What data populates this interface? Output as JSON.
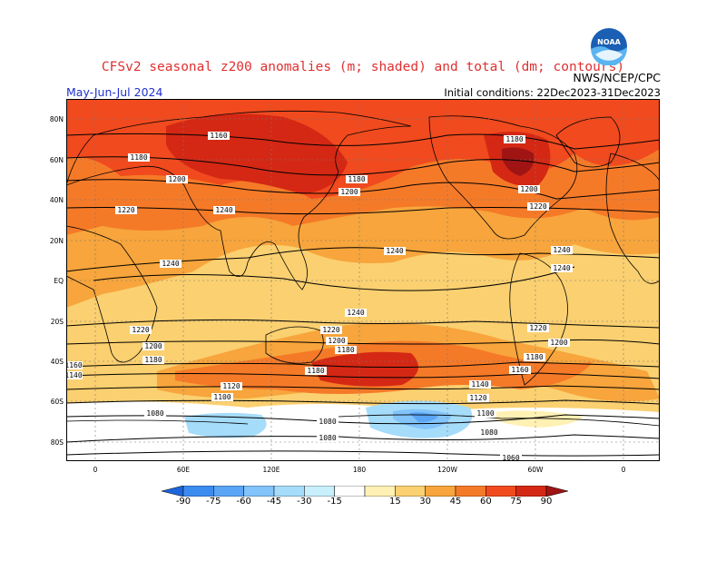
{
  "header": {
    "title": "CFSv2 seasonal z200 anomalies (m; shaded) and total (dm; contours)",
    "season": "May-Jun-Jul 2024",
    "initial_conditions": "Initial conditions: 22Dec2023-31Dec2023",
    "agency": "NWS/NCEP/CPC",
    "logo_text": "NOAA"
  },
  "map": {
    "projection": "cylindrical equidistant, 0-360E",
    "lat_labels": [
      "80N",
      "60N",
      "40N",
      "20N",
      "EQ",
      "20S",
      "40S",
      "60S",
      "80S"
    ],
    "lon_labels": [
      "0",
      "60E",
      "120E",
      "180",
      "120W",
      "60W",
      "0"
    ],
    "contour_labels": [
      "1160",
      "1180",
      "1200",
      "1220",
      "1240",
      "1180",
      "1200",
      "1180",
      "1200",
      "1220",
      "1240",
      "1240",
      "1240",
      "1240",
      "1220",
      "1200",
      "1180",
      "1160",
      "1140",
      "1120",
      "1100",
      "1220",
      "1200",
      "1180",
      "1160",
      "1140",
      "1120",
      "1100",
      "1080",
      "1080",
      "1080",
      "1060",
      "1120",
      "1100",
      "1080",
      "1140",
      "1180",
      "1200",
      "1220",
      "1240",
      "1240",
      "1180",
      "1160",
      "1140"
    ]
  },
  "colorbar": {
    "ticks": [
      "-90",
      "-75",
      "-60",
      "-45",
      "-30",
      "-15",
      "15",
      "30",
      "45",
      "60",
      "75",
      "90"
    ],
    "colors": [
      "#1e64dc",
      "#3c8cf0",
      "#5aa5f5",
      "#82c3fa",
      "#a5dcfa",
      "#c8f0fc",
      "#ffffff",
      "#fff0b4",
      "#fbd070",
      "#f7a53c",
      "#f57a28",
      "#f04a1e",
      "#d42814",
      "#a01414"
    ]
  },
  "colors": {
    "title": "#e03030",
    "season": "#2030d0",
    "ocean_land_base": "#fbd070"
  }
}
